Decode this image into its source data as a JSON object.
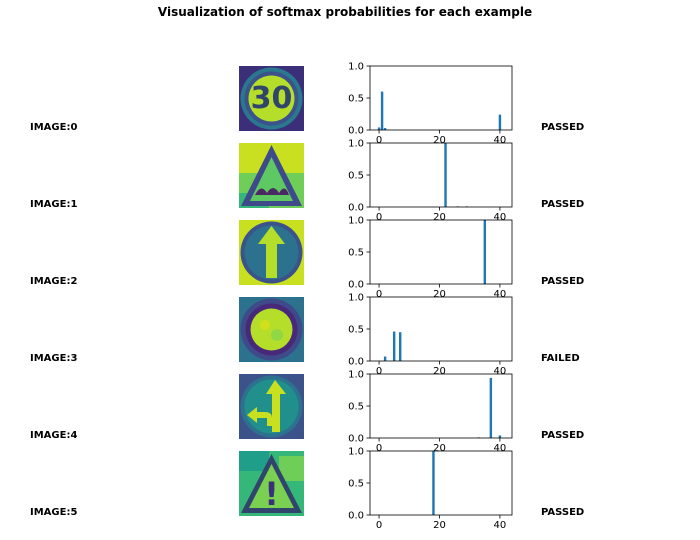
{
  "title": "Visualization of softmax probabilities for each example",
  "colors": {
    "bar": "#1f77b4",
    "axis": "#000000"
  },
  "rows": [
    {
      "label": "IMAGE:0",
      "status": "PASSED",
      "sign": "speed-limit-30",
      "sign_text": "30"
    },
    {
      "label": "IMAGE:1",
      "status": "PASSED",
      "sign": "bumpy-road"
    },
    {
      "label": "IMAGE:2",
      "status": "PASSED",
      "sign": "ahead-only"
    },
    {
      "label": "IMAGE:3",
      "status": "FAILED",
      "sign": "no-vehicles"
    },
    {
      "label": "IMAGE:4",
      "status": "PASSED",
      "sign": "go-straight-or-left"
    },
    {
      "label": "IMAGE:5",
      "status": "PASSED",
      "sign": "general-caution",
      "sign_text": "!"
    }
  ],
  "chart_data": [
    {
      "type": "bar",
      "xlim": [
        -3,
        44
      ],
      "ylim": [
        0,
        1
      ],
      "xticks": [
        0,
        20,
        40
      ],
      "yticks": [
        0.0,
        0.5,
        1.0
      ],
      "x": [
        0,
        1,
        2,
        40
      ],
      "values": [
        0.04,
        0.6,
        0.03,
        0.24
      ]
    },
    {
      "type": "bar",
      "xlim": [
        -3,
        44
      ],
      "ylim": [
        0,
        1
      ],
      "xticks": [
        0,
        20,
        40
      ],
      "yticks": [
        0.0,
        0.5,
        1.0
      ],
      "x": [
        22,
        26,
        29
      ],
      "values": [
        1.0,
        0.01,
        0.01
      ]
    },
    {
      "type": "bar",
      "xlim": [
        -3,
        44
      ],
      "ylim": [
        0,
        1
      ],
      "xticks": [
        0,
        20,
        40
      ],
      "yticks": [
        0.0,
        0.5,
        1.0
      ],
      "x": [
        35
      ],
      "values": [
        1.0
      ]
    },
    {
      "type": "bar",
      "xlim": [
        -3,
        44
      ],
      "ylim": [
        0,
        1
      ],
      "xticks": [
        0,
        20,
        40
      ],
      "yticks": [
        0.0,
        0.5,
        1.0
      ],
      "x": [
        2,
        5,
        7
      ],
      "values": [
        0.07,
        0.46,
        0.45
      ]
    },
    {
      "type": "bar",
      "xlim": [
        -3,
        44
      ],
      "ylim": [
        0,
        1
      ],
      "xticks": [
        0,
        20,
        40
      ],
      "yticks": [
        0.0,
        0.5,
        1.0
      ],
      "x": [
        33,
        37,
        40
      ],
      "values": [
        0.01,
        0.94,
        0.04
      ]
    },
    {
      "type": "bar",
      "xlim": [
        -3,
        44
      ],
      "ylim": [
        0,
        1
      ],
      "xticks": [
        0,
        20,
        40
      ],
      "yticks": [
        0.0,
        0.5,
        1.0
      ],
      "x": [
        18
      ],
      "values": [
        1.0
      ]
    }
  ]
}
